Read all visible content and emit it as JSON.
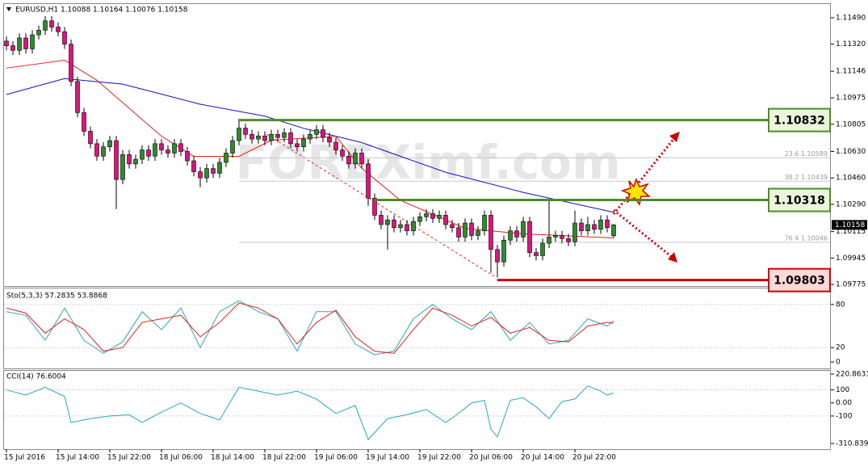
{
  "chart_data": {
    "type": "candlestick",
    "header": "EURUSD,H1  1.10088 1.10164 1.10076 1.10158",
    "watermark": "FOREXimf.com",
    "ylim": [
      1.09765,
      1.11578
    ],
    "yticks": [
      {
        "value": 1.1149,
        "label": "1.11490"
      },
      {
        "value": 1.1132,
        "label": "1.11320"
      },
      1.11146,
      {
        "value": 1.10975,
        "label": "1.10975"
      },
      1.10805,
      {
        "value": 1.1063,
        "label": "1.10630"
      },
      {
        "value": 1.1046,
        "label": "1.10460"
      },
      {
        "value": 1.1029,
        "label": "1.10290"
      },
      1.10115,
      1.09945,
      1.09775
    ],
    "last_price": 1.10158,
    "bull_color": "#2e8b2e",
    "bear_color": "#e0127b",
    "categories": [
      "15 Jul 2016",
      null,
      null,
      null,
      null,
      null,
      null,
      null,
      "15 Jul 14:00",
      null,
      null,
      null,
      null,
      null,
      null,
      null,
      "15 Jul 22:00",
      null,
      null,
      null,
      null,
      null,
      null,
      null,
      "18 Jul 06:00",
      null,
      null,
      null,
      null,
      null,
      null,
      null,
      "18 Jul 14:00",
      null,
      null,
      null,
      null,
      null,
      null,
      null,
      "18 Jul 22:00",
      null,
      null,
      null,
      null,
      null,
      null,
      null,
      "19 Jul 06:00",
      null,
      null,
      null,
      null,
      null,
      null,
      null,
      "19 Jul 14:00",
      null,
      null,
      null,
      null,
      null,
      null,
      null,
      "19 Jul 22:00",
      null,
      null,
      null,
      null,
      null,
      null,
      null,
      "20 Jul 06:00",
      null,
      null,
      null,
      null,
      null,
      null,
      null,
      "20 Jul 14:00",
      null,
      null,
      null,
      null,
      null,
      null,
      null,
      "20 Jul 22:00",
      null,
      null,
      null,
      null,
      null,
      null
    ],
    "candles": [
      [
        1.1134,
        1.1137,
        1.1128,
        1.1131
      ],
      [
        1.1131,
        1.1134,
        1.1125,
        1.1128
      ],
      [
        1.1128,
        1.1139,
        1.1125,
        1.1136
      ],
      [
        1.1136,
        1.1139,
        1.1126,
        1.1129
      ],
      [
        1.1129,
        1.1141,
        1.1126,
        1.1138
      ],
      [
        1.1138,
        1.1144,
        1.1135,
        1.1141
      ],
      [
        1.1141,
        1.115,
        1.1138,
        1.1147
      ],
      [
        1.1147,
        1.115,
        1.114,
        1.1143
      ],
      [
        1.1143,
        1.1146,
        1.1137,
        1.114
      ],
      [
        1.114,
        1.1143,
        1.1129,
        1.1132
      ],
      [
        1.1132,
        1.1135,
        1.1105,
        1.1108
      ],
      [
        1.1108,
        1.1111,
        1.1085,
        1.1088
      ],
      [
        1.1088,
        1.1091,
        1.1073,
        1.1076
      ],
      [
        1.1076,
        1.1079,
        1.1065,
        1.1068
      ],
      [
        1.1068,
        1.1071,
        1.1057,
        1.106
      ],
      [
        1.106,
        1.1069,
        1.1057,
        1.1066
      ],
      [
        1.1066,
        1.1073,
        1.1063,
        1.107
      ],
      [
        1.107,
        1.1073,
        1.1026,
        1.1045
      ],
      [
        1.1045,
        1.1064,
        1.1042,
        1.1061
      ],
      [
        1.1061,
        1.1064,
        1.1052,
        1.1055
      ],
      [
        1.1055,
        1.1061,
        1.1052,
        1.1058
      ],
      [
        1.1058,
        1.1067,
        1.1055,
        1.1064
      ],
      [
        1.1064,
        1.1067,
        1.1057,
        1.106
      ],
      [
        1.106,
        1.1071,
        1.1057,
        1.1068
      ],
      [
        1.1068,
        1.1071,
        1.1061,
        1.1064
      ],
      [
        1.1064,
        1.1067,
        1.1059,
        1.1062
      ],
      [
        1.1062,
        1.1071,
        1.1059,
        1.1068
      ],
      [
        1.1068,
        1.1071,
        1.106,
        1.1063
      ],
      [
        1.1063,
        1.1066,
        1.1054,
        1.1057
      ],
      [
        1.1057,
        1.106,
        1.1047,
        1.105
      ],
      [
        1.105,
        1.1053,
        1.104,
        1.1046
      ],
      [
        1.1046,
        1.1055,
        1.1043,
        1.1052
      ],
      [
        1.1052,
        1.1055,
        1.1046,
        1.1049
      ],
      [
        1.1049,
        1.1059,
        1.1046,
        1.1056
      ],
      [
        1.1056,
        1.1065,
        1.1053,
        1.1062
      ],
      [
        1.1062,
        1.1073,
        1.1059,
        1.107
      ],
      [
        1.107,
        1.1084,
        1.1067,
        1.1078
      ],
      [
        1.1078,
        1.1081,
        1.1071,
        1.1074
      ],
      [
        1.1074,
        1.1077,
        1.1068,
        1.1071
      ],
      [
        1.1071,
        1.1076,
        1.1068,
        1.1073
      ],
      [
        1.1073,
        1.1076,
        1.1067,
        1.107
      ],
      [
        1.107,
        1.1077,
        1.1067,
        1.1074
      ],
      [
        1.1074,
        1.1077,
        1.1069,
        1.1072
      ],
      [
        1.1072,
        1.1078,
        1.1069,
        1.1075
      ],
      [
        1.1075,
        1.1078,
        1.1065,
        1.1068
      ],
      [
        1.1068,
        1.1071,
        1.1063,
        1.1066
      ],
      [
        1.1066,
        1.1074,
        1.1063,
        1.1071
      ],
      [
        1.1071,
        1.1077,
        1.1068,
        1.1074
      ],
      [
        1.1074,
        1.108,
        1.1071,
        1.1077
      ],
      [
        1.1077,
        1.108,
        1.1069,
        1.1072
      ],
      [
        1.1072,
        1.1075,
        1.1066,
        1.1069
      ],
      [
        1.1069,
        1.1072,
        1.1061,
        1.1064
      ],
      [
        1.1064,
        1.1067,
        1.1057,
        1.106
      ],
      [
        1.106,
        1.1063,
        1.1052,
        1.1055
      ],
      [
        1.1055,
        1.1065,
        1.1052,
        1.1062
      ],
      [
        1.1062,
        1.1065,
        1.1052,
        1.1055
      ],
      [
        1.1055,
        1.1058,
        1.1028,
        1.1033
      ],
      [
        1.1033,
        1.1036,
        1.1019,
        1.1022
      ],
      [
        1.1022,
        1.1025,
        1.1013,
        1.1016
      ],
      [
        1.1016,
        1.1022,
        1.1,
        1.1019
      ],
      [
        1.1019,
        1.1022,
        1.1011,
        1.1014
      ],
      [
        1.1014,
        1.1019,
        1.1011,
        1.1016
      ],
      [
        1.1016,
        1.1019,
        1.1009,
        1.1012
      ],
      [
        1.1012,
        1.1021,
        1.1009,
        1.1018
      ],
      [
        1.1018,
        1.1024,
        1.1015,
        1.1021
      ],
      [
        1.1021,
        1.1026,
        1.1018,
        1.1023
      ],
      [
        1.1023,
        1.1026,
        1.1017,
        1.102
      ],
      [
        1.102,
        1.1025,
        1.1017,
        1.1022
      ],
      [
        1.1022,
        1.1025,
        1.1013,
        1.1016
      ],
      [
        1.1016,
        1.1019,
        1.1011,
        1.1014
      ],
      [
        1.1014,
        1.1017,
        1.1005,
        1.1008
      ],
      [
        1.1008,
        1.102,
        1.1005,
        1.1017
      ],
      [
        1.1017,
        1.102,
        1.1006,
        1.1009
      ],
      [
        1.1009,
        1.1015,
        1.1006,
        1.1012
      ],
      [
        1.1012,
        1.1025,
        1.1009,
        1.1022
      ],
      [
        1.1022,
        1.1025,
        1.0985,
        1.1
      ],
      [
        1.1,
        1.1003,
        1.0982,
        1.0992
      ],
      [
        1.0992,
        1.1009,
        1.0989,
        1.1006
      ],
      [
        1.1006,
        1.1015,
        1.1003,
        1.1012
      ],
      [
        1.1012,
        1.1015,
        1.1005,
        1.1008
      ],
      [
        1.1008,
        1.1021,
        1.1005,
        1.1018
      ],
      [
        1.1018,
        1.1021,
        1.0995,
        1.0998
      ],
      [
        1.0998,
        1.1001,
        1.0993,
        1.0996
      ],
      [
        1.0996,
        1.1007,
        1.0993,
        1.1004
      ],
      [
        1.1004,
        1.1032,
        1.1001,
        1.1008
      ],
      [
        1.1008,
        1.1012,
        1.1005,
        1.1009
      ],
      [
        1.1009,
        1.1012,
        1.1004,
        1.1007
      ],
      [
        1.1007,
        1.101,
        1.1002,
        1.1005
      ],
      [
        1.1005,
        1.1025,
        1.1002,
        1.1017
      ],
      [
        1.1017,
        1.102,
        1.1009,
        1.1012
      ],
      [
        1.1012,
        1.1021,
        1.1009,
        1.1016
      ],
      [
        1.1016,
        1.1019,
        1.101,
        1.1013
      ],
      [
        1.1013,
        1.1022,
        1.101,
        1.1019
      ],
      [
        1.1019,
        1.1022,
        1.1011,
        1.1014
      ],
      [
        1.10088,
        1.10164,
        1.10076,
        1.10158
      ]
    ],
    "moving_averages": [
      {
        "color": "#1010c0",
        "x": [
          0,
          9,
          18,
          30,
          40,
          46,
          55,
          68,
          80,
          94
        ],
        "values": [
          1.10996,
          1.11099,
          1.11063,
          1.10934,
          1.10857,
          1.10779,
          1.10687,
          1.10496,
          1.10367,
          1.10239
        ]
      },
      {
        "color": "#e0201c",
        "x": [
          0,
          9,
          14,
          24,
          29,
          36,
          41,
          51,
          55,
          61,
          71,
          80,
          94
        ],
        "values": [
          1.11166,
          1.11217,
          1.11088,
          1.10728,
          1.10599,
          1.10599,
          1.10702,
          1.10728,
          1.10522,
          1.10316,
          1.10136,
          1.101,
          1.10074
        ]
      }
    ],
    "levels": [
      {
        "value": 1.10832,
        "start": 36,
        "color": "#4f8a2a",
        "fill": "#eaf6dc"
      },
      {
        "value": 1.10318,
        "start": 57,
        "color": "#4f8a2a",
        "fill": "#eaf6dc"
      },
      {
        "value": 1.09803,
        "start": 76,
        "color": "#cc0000",
        "fill": "#ffd8d8"
      }
    ],
    "fib_levels": [
      {
        "value": 1.10589,
        "label": "23.6 1.10589"
      },
      {
        "value": 1.10439,
        "label": "38.2 1.10439"
      },
      {
        "value": 1.10046,
        "label": "76.4 1.10046"
      }
    ],
    "indicators": [
      {
        "type": "line",
        "title": "Sto(5,3,3) 57.2835 53.8868",
        "ylim": [
          0,
          100
        ],
        "yticks": [
          0,
          20,
          80
        ],
        "levels": [
          20,
          80
        ],
        "series": [
          {
            "color": "#2aa8b8",
            "x": [
              0,
              3,
              6,
              9,
              12,
              15,
              18,
              21,
              24,
              27,
              30,
              33,
              36,
              39,
              42,
              45,
              48,
              51,
              54,
              57,
              60,
              63,
              66,
              69,
              72,
              75,
              78,
              81,
              84,
              87,
              90,
              93,
              94
            ],
            "values": [
              70,
              65,
              30,
              75,
              30,
              12,
              28,
              70,
              45,
              75,
              20,
              70,
              85,
              70,
              60,
              15,
              70,
              70,
              25,
              10,
              15,
              60,
              80,
              60,
              45,
              70,
              30,
              55,
              25,
              30,
              60,
              50,
              57.2835
            ]
          },
          {
            "color": "#e0201c",
            "x": [
              0,
              3,
              6,
              9,
              12,
              15,
              18,
              21,
              24,
              27,
              30,
              33,
              36,
              39,
              42,
              45,
              48,
              51,
              54,
              57,
              60,
              63,
              66,
              69,
              72,
              75,
              78,
              81,
              84,
              87,
              90,
              93,
              94
            ],
            "values": [
              75,
              68,
              40,
              60,
              45,
              15,
              20,
              55,
              60,
              65,
              35,
              55,
              82,
              75,
              60,
              25,
              55,
              72,
              35,
              15,
              12,
              45,
              75,
              65,
              50,
              62,
              40,
              48,
              30,
              28,
              50,
              55,
              53.8868
            ]
          }
        ]
      },
      {
        "type": "line",
        "title": "CCI(14) 76.6004",
        "ylim": [
          -310.8394,
          220.8633
        ],
        "yticks": [
          220.8633,
          100,
          {
            "value": 0,
            "label": "0.00"
          },
          -100,
          -310.8394
        ],
        "levels": [
          100,
          -100
        ],
        "series": [
          {
            "color": "#2aa8b8",
            "x": [
              0,
              3,
              6,
              9,
              10,
              13,
              16,
              19,
              21,
              24,
              27,
              30,
              33,
              36,
              39,
              42,
              45,
              48,
              51,
              54,
              56,
              59,
              62,
              65,
              68,
              70,
              72,
              74,
              75,
              76,
              78,
              80,
              82,
              84,
              86,
              88,
              90,
              92,
              93,
              94
            ],
            "values": [
              100,
              60,
              120,
              50,
              -150,
              -120,
              -100,
              -90,
              -150,
              -70,
              0,
              -80,
              -130,
              120,
              90,
              60,
              90,
              30,
              -80,
              -20,
              -280,
              -120,
              -90,
              -50,
              -150,
              -80,
              0,
              20,
              -200,
              -260,
              20,
              40,
              -30,
              -120,
              10,
              30,
              130,
              90,
              60,
              76.6004
            ]
          }
        ]
      }
    ]
  }
}
